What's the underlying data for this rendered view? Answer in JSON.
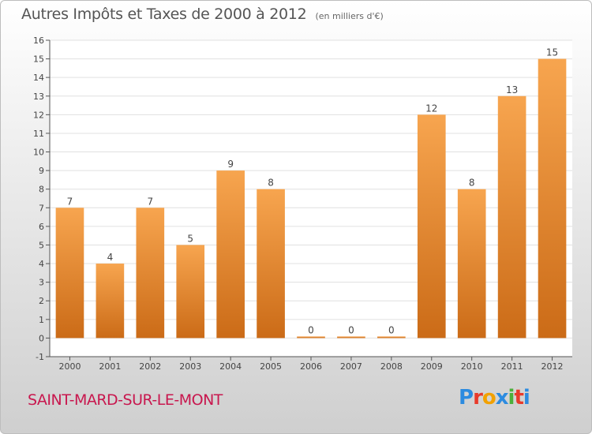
{
  "header": {
    "title": "Autres Impôts et Taxes de 2000 à 2012",
    "subtitle": "(en milliers d'€)"
  },
  "footer": {
    "commune": "SAINT-MARD-SUR-LE-MONT",
    "logo": [
      "P",
      "r",
      "o",
      "x",
      "i",
      "t",
      "i"
    ],
    "logo_colors": [
      "#2c8be0",
      "#e83a2a",
      "#f2a100",
      "#2c8be0",
      "#4caf3a",
      "#e83a2a",
      "#2c8be0"
    ]
  },
  "colors": {
    "bar_light": "#f7a54f",
    "bar_dark": "#cb6b17",
    "grid": "#e0e0e0",
    "axis": "#555555"
  },
  "chart_data": {
    "type": "bar",
    "categories": [
      "2000",
      "2001",
      "2002",
      "2003",
      "2004",
      "2005",
      "2006",
      "2007",
      "2008",
      "2009",
      "2010",
      "2011",
      "2012"
    ],
    "values": [
      7,
      4,
      7,
      5,
      9,
      8,
      0,
      0,
      0,
      12,
      8,
      13,
      15
    ],
    "data_labels": [
      "7",
      "4",
      "7",
      "5",
      "9",
      "8",
      "0",
      "0",
      "0",
      "12",
      "8",
      "13",
      "15"
    ],
    "title": "Autres Impôts et Taxes de 2000 à 2012",
    "subtitle": "(en milliers d'€)",
    "xlabel": "",
    "ylabel": "",
    "ylim": [
      -1,
      16
    ],
    "yticks": [
      -1,
      0,
      1,
      2,
      3,
      4,
      5,
      6,
      7,
      8,
      9,
      10,
      11,
      12,
      13,
      14,
      15,
      16
    ],
    "grid": true,
    "legend": "none"
  }
}
